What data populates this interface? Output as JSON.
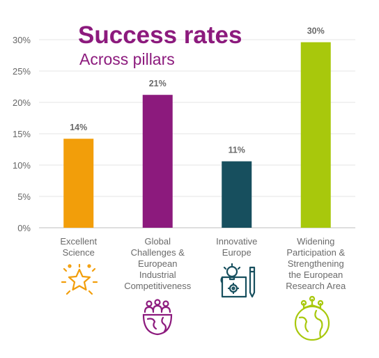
{
  "chart_data": {
    "type": "bar",
    "title": "Success rates",
    "subtitle": "Across pillars",
    "categories": [
      [
        "Excellent",
        "Science"
      ],
      [
        "Global",
        "Challenges &",
        "European",
        "Industrial",
        "Competitiveness"
      ],
      [
        "Innovative",
        "Europe"
      ],
      [
        "Widening",
        "Participation &",
        "Strengthening",
        "the European",
        "Research Area"
      ]
    ],
    "values": [
      14,
      21,
      11,
      30
    ],
    "value_heights": [
      14.2,
      21.2,
      10.6,
      29.6
    ],
    "data_labels": [
      "14%",
      "21%",
      "11%",
      "30%"
    ],
    "colors": [
      "#f29e0a",
      "#8c1a7d",
      "#174f5e",
      "#a8c80c"
    ],
    "yticks": [
      "0%",
      "5%",
      "10%",
      "15%",
      "20%",
      "25%",
      "30%"
    ],
    "ylim": [
      0,
      30
    ],
    "grid": true,
    "title_color": "#8c1a7d",
    "icons": [
      "star-icon",
      "people-globe-icon",
      "innovation-blueprint-icon",
      "globe-network-icon"
    ]
  }
}
